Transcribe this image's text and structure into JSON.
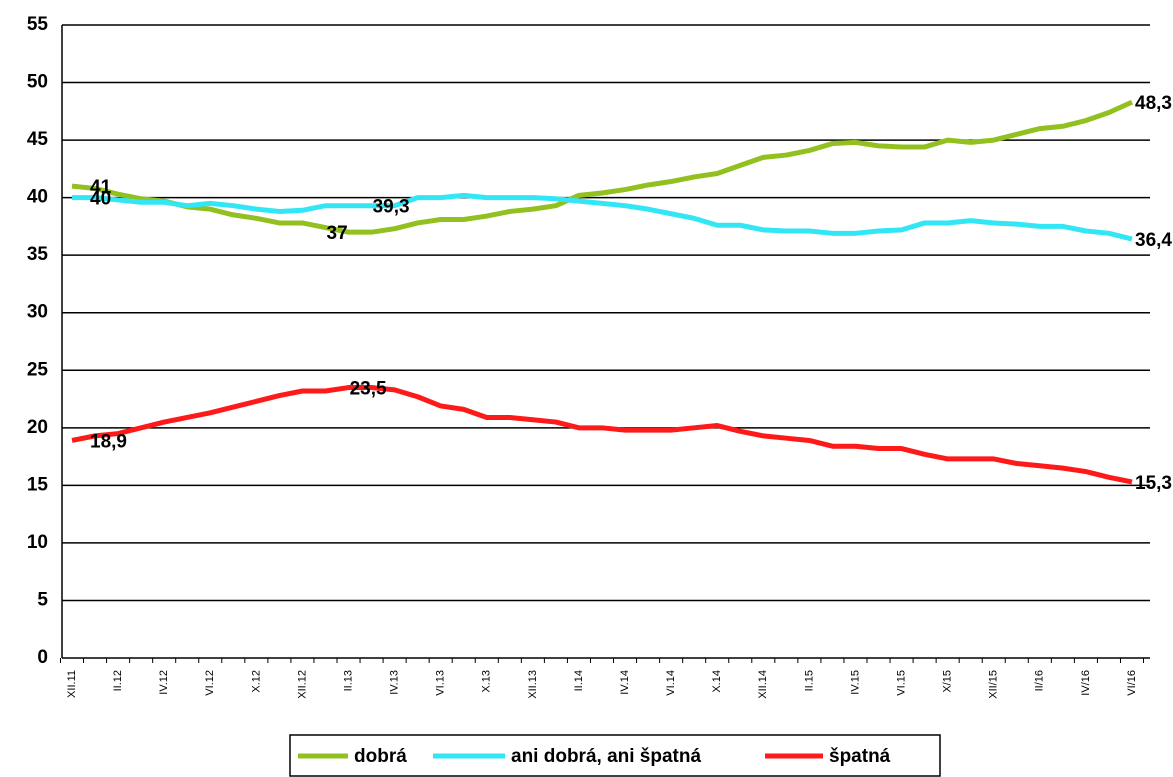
{
  "chart_data": {
    "type": "line",
    "categories": [
      "XII.11",
      null,
      "II.12",
      null,
      "IV.12",
      null,
      "VI.12",
      null,
      "X.12",
      null,
      "XII.12",
      null,
      "II.13",
      null,
      "IV.13",
      null,
      "VI.13",
      null,
      "X.13",
      null,
      "XII.13",
      null,
      "II.14",
      null,
      "IV.14",
      null,
      "VI.14",
      null,
      "X.14",
      null,
      "XII.14",
      null,
      "II.15",
      null,
      "IV.15",
      null,
      "VI.15",
      null,
      "X/15",
      null,
      "XII/15",
      null,
      "II/16",
      null,
      "IV/16",
      null,
      "VI/16"
    ],
    "series": [
      {
        "name": "dobrá",
        "color": "#92c01f",
        "values": [
          41,
          40.8,
          40.3,
          39.9,
          39.7,
          39.2,
          39,
          38.5,
          38.2,
          37.8,
          37.8,
          37.4,
          37,
          37,
          37.3,
          37.8,
          38.1,
          38.1,
          38.4,
          38.8,
          39,
          39.3,
          40.2,
          40.4,
          40.7,
          41.1,
          41.4,
          41.8,
          42.1,
          42.8,
          43.5,
          43.7,
          44.1,
          44.7,
          44.8,
          44.5,
          44.4,
          44.4,
          45,
          44.8,
          45,
          45.5,
          46,
          46.2,
          46.7,
          47.4,
          48.3
        ],
        "value_labels": [
          "41",
          null,
          null,
          null,
          null,
          null,
          null,
          null,
          null,
          null,
          null,
          null,
          "37",
          null,
          null,
          null,
          null,
          null,
          null,
          null,
          null,
          null,
          null,
          null,
          null,
          null,
          null,
          null,
          null,
          null,
          null,
          null,
          null,
          null,
          null,
          null,
          null,
          null,
          null,
          null,
          null,
          null,
          null,
          null,
          null,
          null,
          "48,3"
        ]
      },
      {
        "name": "ani dobrá, ani špatná",
        "color": "#33e6f5",
        "values": [
          40,
          40,
          39.8,
          39.6,
          39.6,
          39.3,
          39.5,
          39.3,
          39,
          38.8,
          38.9,
          39.3,
          39.3,
          39.3,
          39.3,
          40,
          40,
          40.2,
          40,
          40,
          40,
          39.9,
          39.7,
          39.5,
          39.3,
          39,
          38.6,
          38.2,
          37.6,
          37.6,
          37.2,
          37.1,
          37.1,
          36.9,
          36.9,
          37.1,
          37.2,
          37.8,
          37.8,
          38,
          37.8,
          37.7,
          37.5,
          37.5,
          37.1,
          36.9,
          36.4
        ],
        "value_labels": [
          "40",
          null,
          null,
          null,
          null,
          null,
          null,
          null,
          null,
          null,
          null,
          null,
          null,
          null,
          "39,3",
          null,
          null,
          null,
          null,
          null,
          null,
          null,
          null,
          null,
          null,
          null,
          null,
          null,
          null,
          null,
          null,
          null,
          null,
          null,
          null,
          null,
          null,
          null,
          null,
          null,
          null,
          null,
          null,
          null,
          null,
          null,
          "36,4"
        ]
      },
      {
        "name": "špatná",
        "color": "#ff1a1a",
        "values": [
          18.9,
          19.3,
          19.5,
          20,
          20.5,
          20.9,
          21.3,
          21.8,
          22.3,
          22.8,
          23.2,
          23.2,
          23.5,
          23.5,
          23.3,
          22.7,
          21.9,
          21.6,
          20.9,
          20.9,
          20.7,
          20.5,
          20,
          20,
          19.8,
          19.8,
          19.8,
          20,
          20.2,
          19.7,
          19.3,
          19.1,
          18.9,
          18.4,
          18.4,
          18.2,
          18.2,
          17.7,
          17.3,
          17.3,
          17.3,
          16.9,
          16.7,
          16.5,
          16.2,
          15.7,
          15.3
        ],
        "value_labels": [
          "18,9",
          null,
          null,
          null,
          null,
          null,
          null,
          null,
          null,
          null,
          null,
          null,
          null,
          "23,5",
          null,
          null,
          null,
          null,
          null,
          null,
          null,
          null,
          null,
          null,
          null,
          null,
          null,
          null,
          null,
          null,
          null,
          null,
          null,
          null,
          null,
          null,
          null,
          null,
          null,
          null,
          null,
          null,
          null,
          null,
          null,
          null,
          "15,3"
        ]
      }
    ],
    "ylim": [
      0,
      55
    ],
    "yticks": [
      0,
      5,
      10,
      15,
      20,
      25,
      30,
      35,
      40,
      45,
      50,
      55
    ],
    "grid": true,
    "legend": "bottom"
  }
}
